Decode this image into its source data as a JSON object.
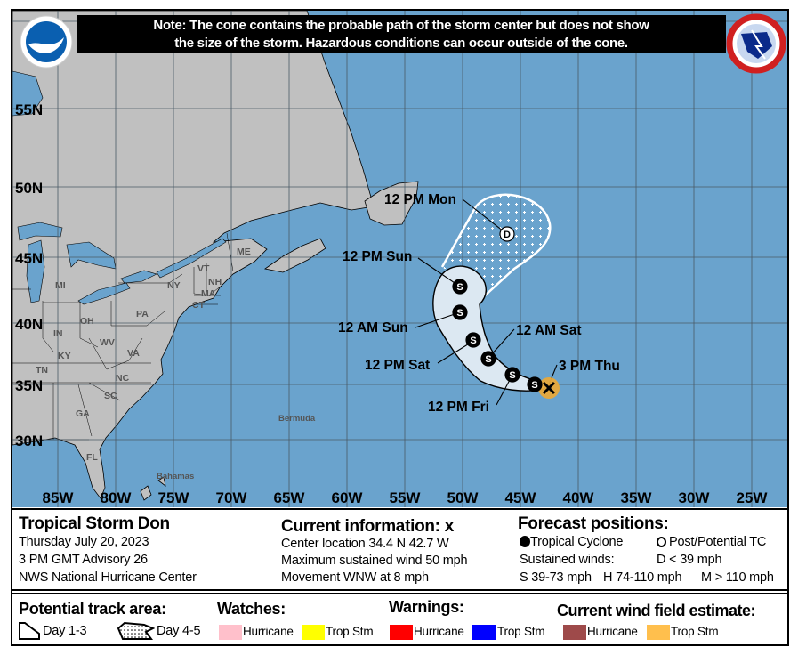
{
  "note": {
    "line1": "Note: The cone contains the probable path of the storm center but does not show",
    "line2": "the size of the storm. Hazardous conditions can occur outside of the cone."
  },
  "logos": {
    "left": "NOAA",
    "right": "NATIONAL WEATHER SERVICE"
  },
  "map": {
    "colors": {
      "ocean": "#6aa3cd",
      "land": "#c0c0c0",
      "cone_day13": "#dce8f2",
      "wind_trop_storm": "#e8a93a"
    },
    "lat_labels": [
      "55N",
      "50N",
      "45N",
      "40N",
      "35N",
      "30N"
    ],
    "lon_labels": [
      "85W",
      "80W",
      "75W",
      "70W",
      "65W",
      "60W",
      "55W",
      "50W",
      "45W",
      "40W",
      "35W",
      "30W",
      "25W"
    ],
    "place_labels": [
      "MI",
      "OH",
      "PA",
      "NY",
      "VT",
      "NH",
      "MA",
      "CT",
      "ME",
      "IN",
      "KY",
      "WV",
      "VA",
      "TN",
      "NC",
      "SC",
      "GA",
      "FL",
      "Bermuda",
      "Bahamas"
    ],
    "track_labels": [
      "12 PM Mon",
      "12 PM Sun",
      "12 AM Sun",
      "12 PM Sat",
      "12 AM Sat",
      "3 PM Thu",
      "12 PM Fri"
    ],
    "track_symbols": {
      "storm": "S",
      "depression": "D"
    }
  },
  "storm": {
    "title": "Tropical Storm Don",
    "date": "Thursday July 20, 2023",
    "advisory": "3 PM GMT Advisory 26",
    "center": "NWS National Hurricane Center"
  },
  "current": {
    "title": "Current information:",
    "mark": "x",
    "location": "Center location 34.4 N 42.7 W",
    "wind": "Maximum sustained wind 50 mph",
    "movement": "Movement WNW at 8 mph"
  },
  "forecast": {
    "title": "Forecast positions:",
    "tc": "Tropical Cyclone",
    "ptc": "Post/Potential TC",
    "winds": "Sustained winds:",
    "d": "D < 39 mph",
    "s": "S 39-73 mph",
    "h": "H 74-110 mph",
    "m": "M > 110 mph"
  },
  "legend": {
    "track_title": "Potential track area:",
    "day13": "Day 1-3",
    "day45": "Day 4-5",
    "watches_title": "Watches:",
    "warnings_title": "Warnings:",
    "wind_title": "Current wind field estimate:",
    "hurricane": "Hurricane",
    "trop_stm": "Trop Stm",
    "colors": {
      "watch_hurricane": "#ffc0cb",
      "watch_trop": "#ffff00",
      "warn_hurricane": "#ff0000",
      "warn_trop": "#0000ff",
      "wind_hurricane": "#9e4a4a",
      "wind_trop": "#ffbf4d"
    }
  }
}
